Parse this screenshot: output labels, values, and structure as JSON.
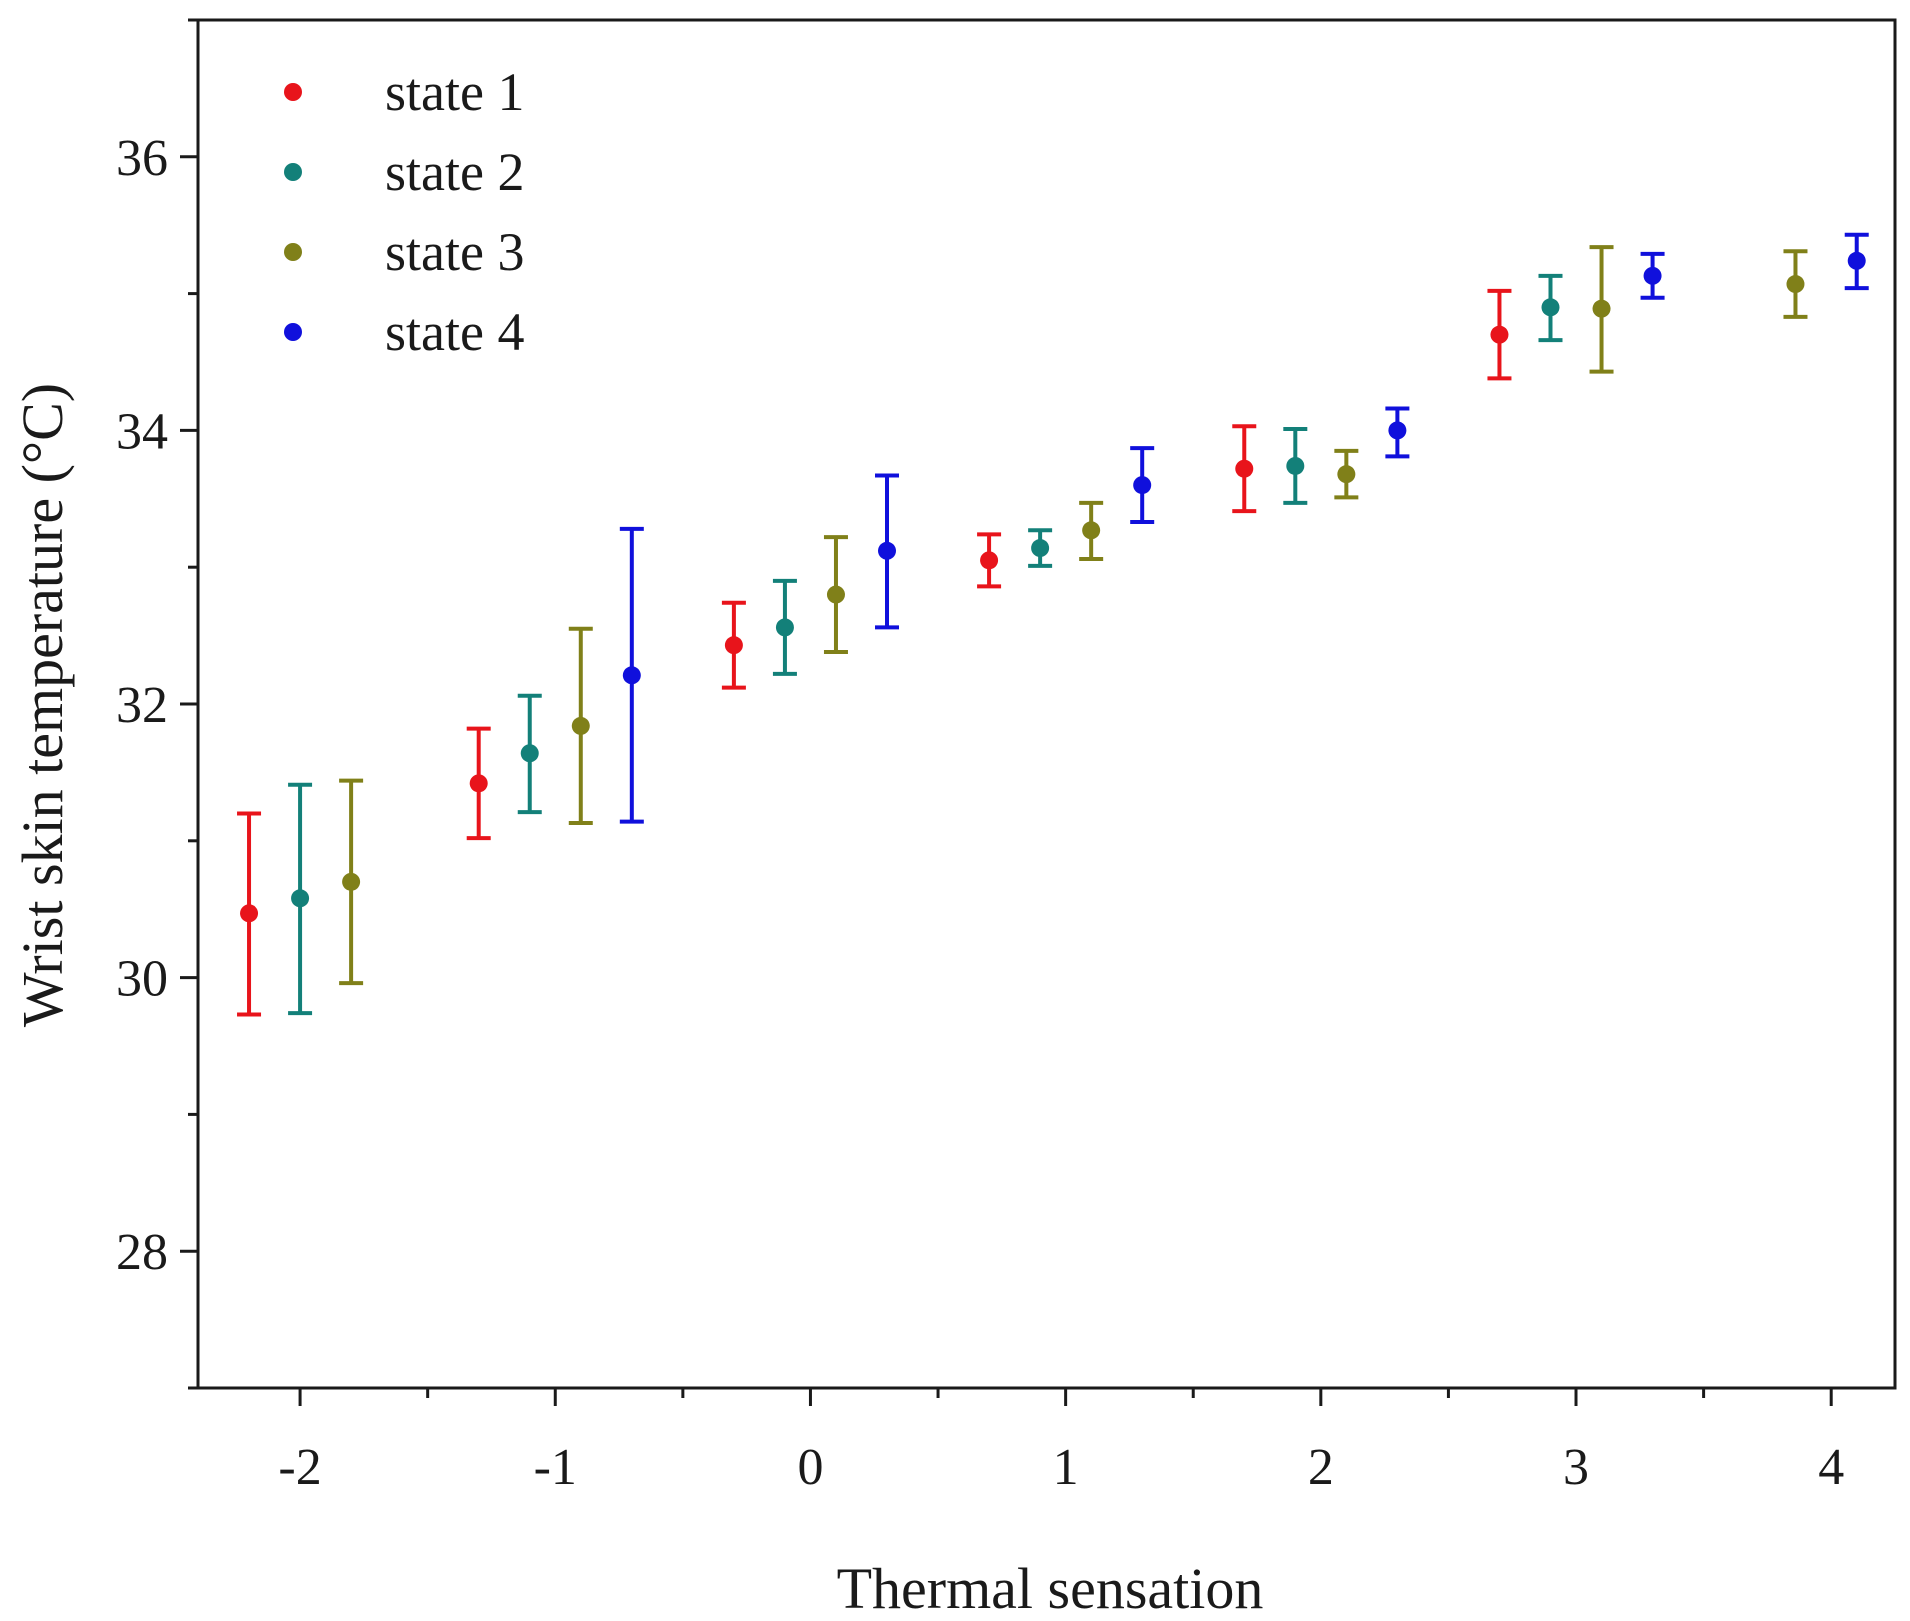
{
  "chart_data": {
    "type": "scatter",
    "title": "",
    "xlabel": "Thermal sensation",
    "ylabel": "Wrist skin temperature (°C)",
    "xlim": [
      -2.4,
      4.25
    ],
    "ylim": [
      27,
      37
    ],
    "x_ticks": [
      -2,
      -1,
      0,
      1,
      2,
      3,
      4
    ],
    "x_tick_labels": [
      "-2",
      "-1",
      "0",
      "1",
      "2",
      "3",
      "4"
    ],
    "y_ticks": [
      28,
      30,
      32,
      34,
      36
    ],
    "y_tick_labels": [
      "28",
      "30",
      "32",
      "34",
      "36"
    ],
    "legend_position": "top-left",
    "series": [
      {
        "name": "state 1",
        "color": "#e8141b",
        "points": [
          {
            "x": -2.2,
            "y": 30.47,
            "low": 29.73,
            "high": 31.2
          },
          {
            "x": -1.3,
            "y": 31.42,
            "low": 31.02,
            "high": 31.82
          },
          {
            "x": -0.3,
            "y": 32.43,
            "low": 32.12,
            "high": 32.74
          },
          {
            "x": 0.7,
            "y": 33.05,
            "low": 32.86,
            "high": 33.24
          },
          {
            "x": 1.7,
            "y": 33.72,
            "low": 33.41,
            "high": 34.03
          },
          {
            "x": 2.7,
            "y": 34.7,
            "low": 34.38,
            "high": 35.02
          }
        ]
      },
      {
        "name": "state 2",
        "color": "#138079",
        "points": [
          {
            "x": -2.0,
            "y": 30.58,
            "low": 29.74,
            "high": 31.41
          },
          {
            "x": -1.1,
            "y": 31.64,
            "low": 31.21,
            "high": 32.06
          },
          {
            "x": -0.1,
            "y": 32.56,
            "low": 32.22,
            "high": 32.9
          },
          {
            "x": 0.9,
            "y": 33.14,
            "low": 33.01,
            "high": 33.27
          },
          {
            "x": 1.9,
            "y": 33.74,
            "low": 33.47,
            "high": 34.01
          },
          {
            "x": 2.9,
            "y": 34.9,
            "low": 34.66,
            "high": 35.13
          }
        ]
      },
      {
        "name": "state 3",
        "color": "#808019",
        "points": [
          {
            "x": -1.8,
            "y": 30.7,
            "low": 29.96,
            "high": 31.44
          },
          {
            "x": -0.9,
            "y": 31.84,
            "low": 31.13,
            "high": 32.55
          },
          {
            "x": 0.1,
            "y": 32.8,
            "low": 32.38,
            "high": 33.22
          },
          {
            "x": 1.1,
            "y": 33.27,
            "low": 33.06,
            "high": 33.47
          },
          {
            "x": 2.1,
            "y": 33.68,
            "low": 33.51,
            "high": 33.85
          },
          {
            "x": 3.1,
            "y": 34.89,
            "low": 34.43,
            "high": 35.34
          },
          {
            "x": 3.86,
            "y": 35.07,
            "low": 34.83,
            "high": 35.31
          }
        ]
      },
      {
        "name": "state 4",
        "color": "#1010dc",
        "points": [
          {
            "x": -0.7,
            "y": 32.21,
            "low": 31.14,
            "high": 33.28
          },
          {
            "x": 0.3,
            "y": 33.12,
            "low": 32.56,
            "high": 33.67
          },
          {
            "x": 1.3,
            "y": 33.6,
            "low": 33.33,
            "high": 33.87
          },
          {
            "x": 2.3,
            "y": 34.0,
            "low": 33.81,
            "high": 34.16
          },
          {
            "x": 3.3,
            "y": 35.13,
            "low": 34.97,
            "high": 35.29
          },
          {
            "x": 4.1,
            "y": 35.24,
            "low": 35.04,
            "high": 35.43
          }
        ]
      }
    ]
  }
}
